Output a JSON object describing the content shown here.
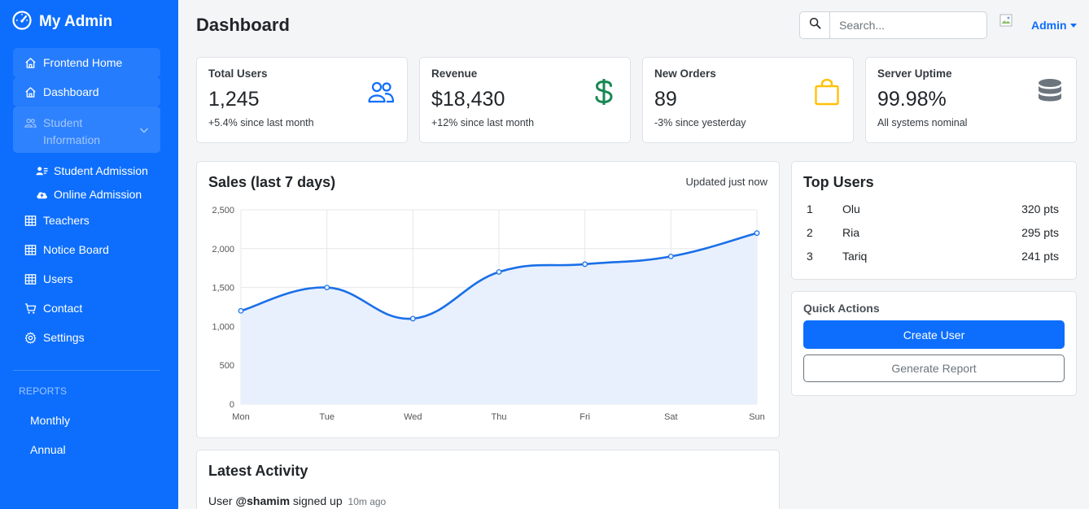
{
  "sidebar": {
    "brand": "My Admin",
    "items": [
      {
        "label": "Frontend Home",
        "icon": "home-icon"
      },
      {
        "label": "Dashboard",
        "icon": "home-icon"
      },
      {
        "label": "Student Information",
        "icon": "people-icon"
      },
      {
        "label": "Student Admission",
        "icon": "person-card-icon"
      },
      {
        "label": "Online Admission",
        "icon": "cloud-upload-icon"
      },
      {
        "label": "Teachers",
        "icon": "table-icon"
      },
      {
        "label": "Notice Board",
        "icon": "table-icon"
      },
      {
        "label": "Users",
        "icon": "table-icon"
      },
      {
        "label": "Contact",
        "icon": "cart-icon"
      },
      {
        "label": "Settings",
        "icon": "gear-icon"
      }
    ],
    "reports_heading": "REPORTS",
    "reports": [
      "Monthly",
      "Annual"
    ]
  },
  "header": {
    "title": "Dashboard",
    "search_placeholder": "Search...",
    "user_label": "Admin"
  },
  "stats": [
    {
      "label": "Total Users",
      "value": "1,245",
      "sub": "+5.4% since last month",
      "icon": "people-icon",
      "color": "#0d6efd"
    },
    {
      "label": "Revenue",
      "value": "$18,430",
      "sub": "+12% since last month",
      "icon": "dollar-icon",
      "color": "#198754"
    },
    {
      "label": "New Orders",
      "value": "89",
      "sub": "-3% since yesterday",
      "icon": "shopping-bag-icon",
      "color": "#ffc107"
    },
    {
      "label": "Server Uptime",
      "value": "99.98%",
      "sub": "All systems nominal",
      "icon": "database-icon",
      "color": "#6c757d"
    }
  ],
  "sales_card": {
    "title": "Sales (last 7 days)",
    "updated": "Updated just now"
  },
  "chart_data": {
    "type": "line",
    "categories": [
      "Mon",
      "Tue",
      "Wed",
      "Thu",
      "Fri",
      "Sat",
      "Sun"
    ],
    "series": [
      {
        "values": [
          1200,
          1500,
          1100,
          1700,
          1800,
          1900,
          2200
        ]
      }
    ],
    "ylim": [
      0,
      2500
    ],
    "yticks": [
      "0",
      "500",
      "1,000",
      "1,500",
      "2,000",
      "2,500"
    ],
    "grid": true,
    "fill": true,
    "color": "#1a6fe8",
    "fill_color": "#e8f0fd"
  },
  "top_users": {
    "title": "Top Users",
    "rows": [
      {
        "rank": "1",
        "name": "Olu",
        "points": "320 pts"
      },
      {
        "rank": "2",
        "name": "Ria",
        "points": "295 pts"
      },
      {
        "rank": "3",
        "name": "Tariq",
        "points": "241 pts"
      }
    ]
  },
  "quick_actions": {
    "title": "Quick Actions",
    "primary": "Create User",
    "secondary": "Generate Report"
  },
  "activity": {
    "title": "Latest Activity",
    "items": [
      {
        "prefix": "User",
        "user": "@shamim",
        "action": "signed up",
        "time": "10m ago"
      }
    ]
  }
}
